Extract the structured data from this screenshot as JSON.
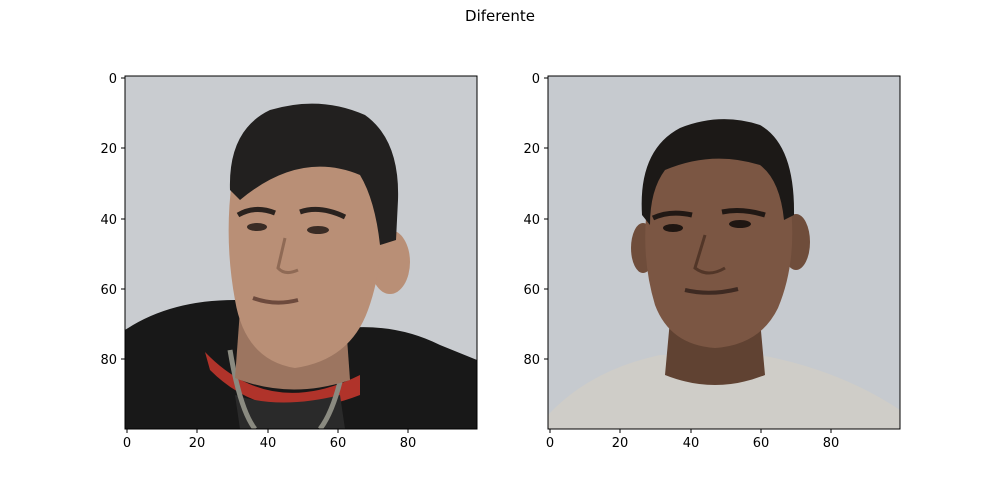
{
  "figure": {
    "title": "Diferente"
  },
  "panels": [
    {
      "x_ticks": [
        "0",
        "20",
        "40",
        "60",
        "80"
      ],
      "y_ticks": [
        "0",
        "20",
        "40",
        "60",
        "80"
      ],
      "palette": {
        "bg": "#c9ccd0",
        "hair": "#22201f",
        "skin": "#b98f76",
        "skin_shade": "#9c7560",
        "jacket": "#181818",
        "accent": "#b0332a",
        "shirt": "#2a2a2a",
        "zip": "#8a8a80"
      }
    },
    {
      "x_ticks": [
        "0",
        "20",
        "40",
        "60",
        "80"
      ],
      "y_ticks": [
        "0",
        "20",
        "40",
        "60",
        "80"
      ],
      "palette": {
        "bg": "#c6cacf",
        "hair": "#1c1917",
        "skin": "#7b5643",
        "skin_shade": "#604232",
        "jacket": "#cfcdc8",
        "accent": "#cfcdc8",
        "shirt": "#cfcdc8",
        "zip": "#cfcdc8"
      }
    }
  ]
}
